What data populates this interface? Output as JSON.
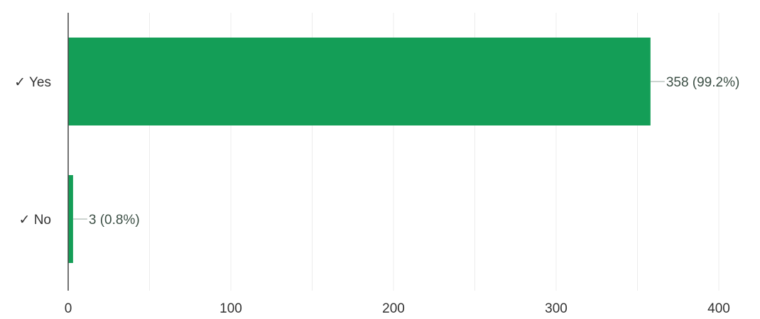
{
  "chart_data": {
    "type": "bar",
    "orientation": "horizontal",
    "categories": [
      "✓ Yes",
      "✓ No"
    ],
    "values": [
      358,
      3
    ],
    "data_labels": [
      "358 (99.2%)",
      "3 (0.8%)"
    ],
    "xlim": [
      0,
      400
    ],
    "x_ticks": [
      0,
      100,
      200,
      300,
      400
    ],
    "minor_gridlines": [
      50,
      150,
      250,
      350
    ],
    "grid": true,
    "legend": "none",
    "colors": {
      "bar": "#149e57",
      "grid": "#ececec",
      "axis": "#444444",
      "label_leader": "#9aa8a0"
    }
  }
}
